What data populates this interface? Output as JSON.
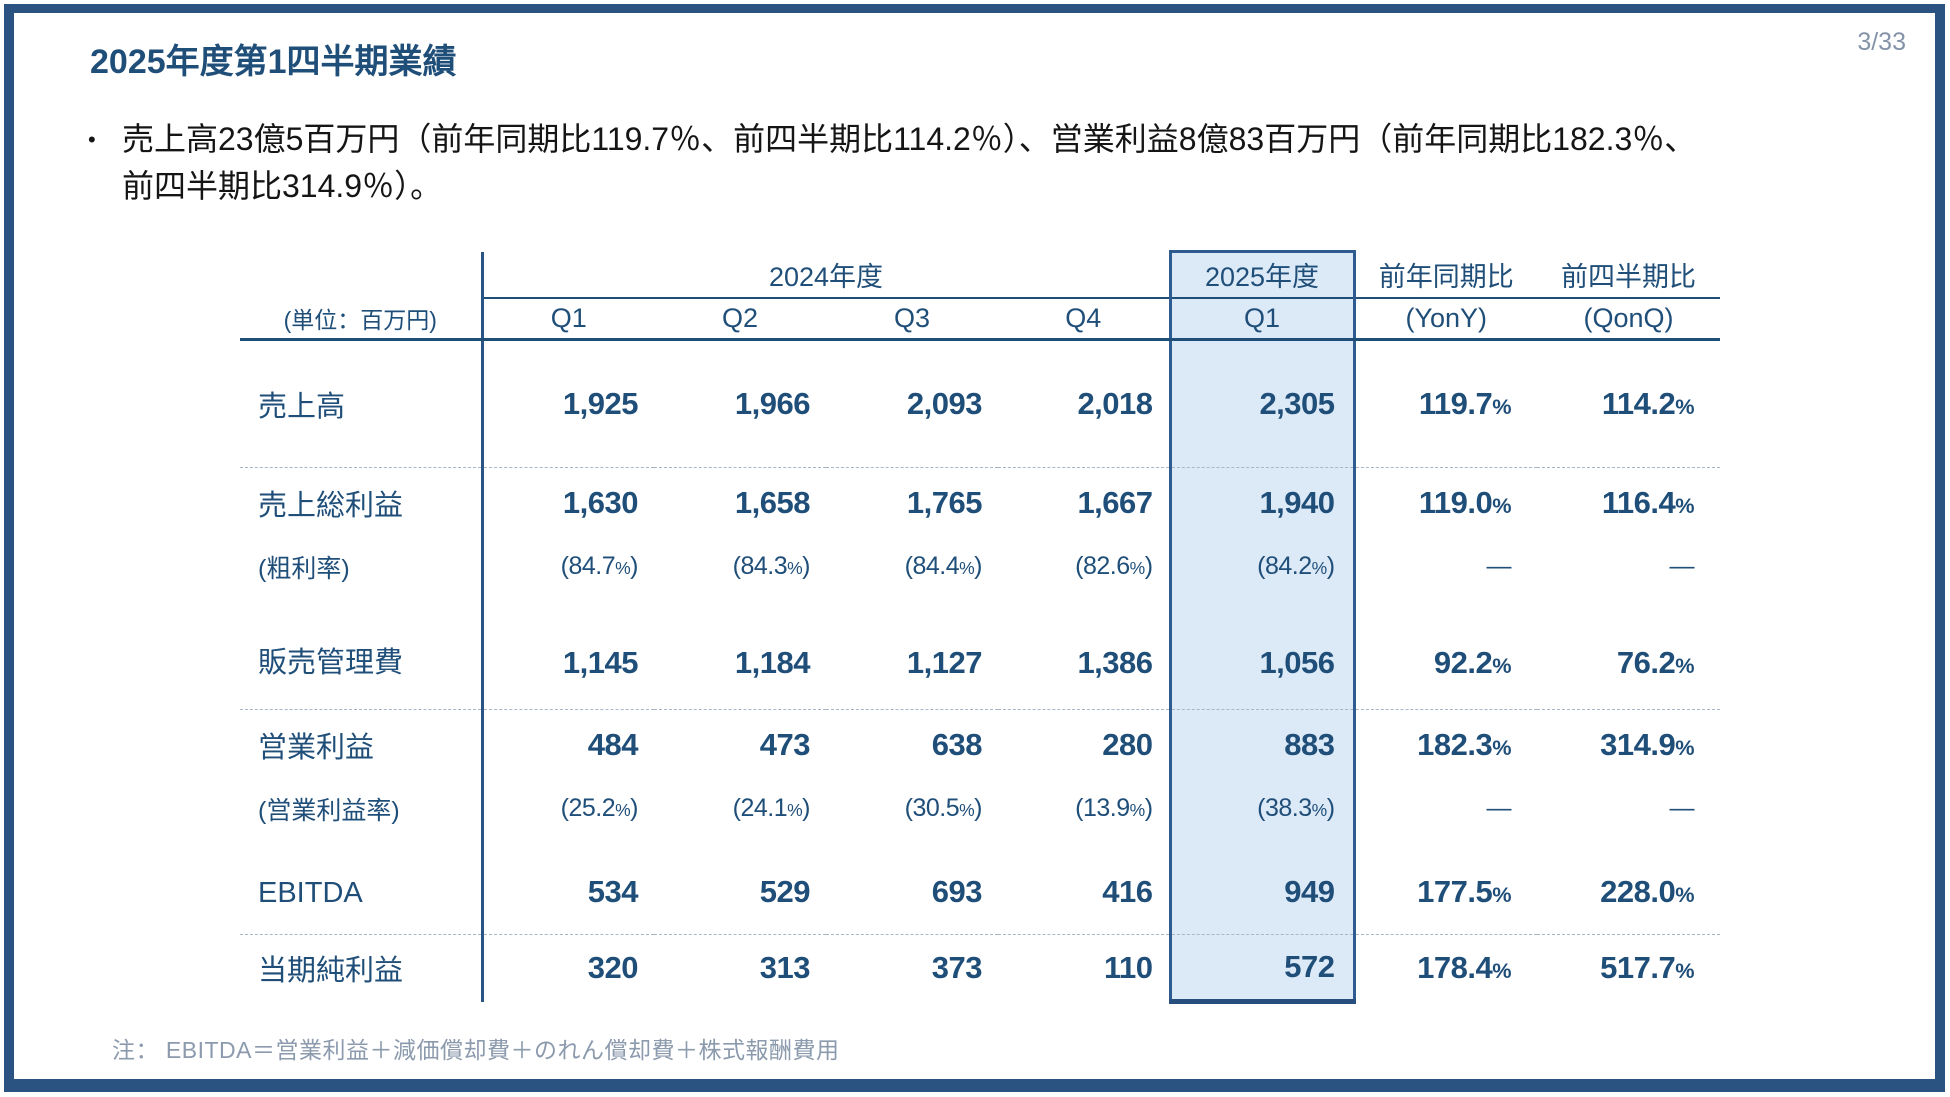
{
  "slide": {
    "title": "2025年度第1四半期業績",
    "page_number": "3/33",
    "bullet_marker": "•",
    "bullet_line1": "売上高23億5百万円（前年同期比119.7％、前四半期比114.2％）、営業利益8億83百万円（前年同期比182.3％、",
    "bullet_line2": "前四半期比314.9％）。",
    "note": "注：  EBITDA＝営業利益＋減価償却費＋のれん償却費＋株式報酬費用"
  },
  "colors": {
    "accent_navy": "#1f4e79",
    "frame_border": "#2b5381",
    "highlight_fill": "#dce9f6",
    "highlight_border": "#2e5b90",
    "note_gray": "#8b9aad"
  },
  "table": {
    "unit_label": "(単位：百万円)",
    "group_headers": {
      "fy2024": "2024年度",
      "fy2025": "2025年度",
      "yony": "前年同期比",
      "qonq": "前四半期比"
    },
    "col_headers": [
      "Q1",
      "Q2",
      "Q3",
      "Q4",
      "Q1",
      "(YonY)",
      "(QonQ)"
    ],
    "rows": [
      {
        "label": "売上高",
        "type": "main",
        "cells": [
          "1,925",
          "1,966",
          "2,093",
          "2,018",
          "2,305",
          "119.7%",
          "114.2%"
        ]
      },
      {
        "label": "売上総利益",
        "type": "main",
        "cells": [
          "1,630",
          "1,658",
          "1,765",
          "1,667",
          "1,940",
          "119.0%",
          "116.4%"
        ]
      },
      {
        "label": "(粗利率)",
        "type": "sub",
        "cells": [
          "(84.7%)",
          "(84.3%)",
          "(84.4%)",
          "(82.6%)",
          "(84.2%)",
          "—",
          "—"
        ]
      },
      {
        "label": "販売管理費",
        "type": "main",
        "cells": [
          "1,145",
          "1,184",
          "1,127",
          "1,386",
          "1,056",
          "92.2%",
          "76.2%"
        ]
      },
      {
        "label": "営業利益",
        "type": "main",
        "cells": [
          "484",
          "473",
          "638",
          "280",
          "883",
          "182.3%",
          "314.9%"
        ]
      },
      {
        "label": "(営業利益率)",
        "type": "sub",
        "cells": [
          "(25.2%)",
          "(24.1%)",
          "(30.5%)",
          "(13.9%)",
          "(38.3%)",
          "—",
          "—"
        ]
      },
      {
        "label": "EBITDA",
        "type": "main",
        "cells": [
          "534",
          "529",
          "693",
          "416",
          "949",
          "177.5%",
          "228.0%"
        ]
      },
      {
        "label": "当期純利益",
        "type": "main",
        "cells": [
          "320",
          "313",
          "373",
          "110",
          "572",
          "178.4%",
          "517.7%"
        ]
      }
    ]
  }
}
